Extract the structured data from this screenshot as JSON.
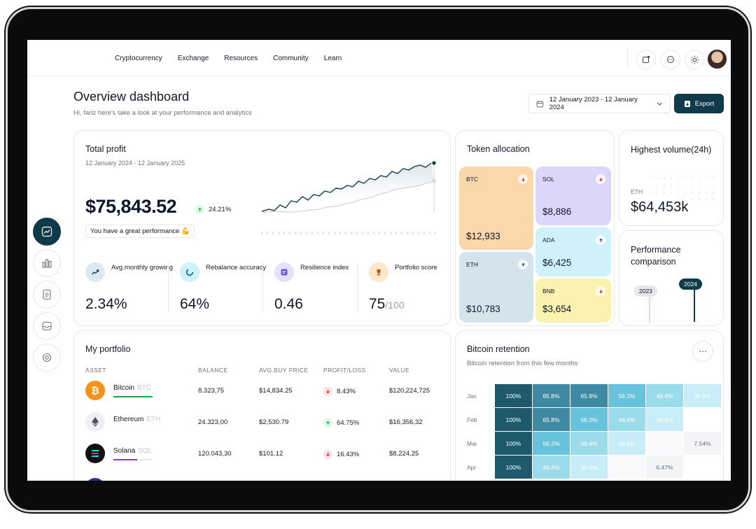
{
  "nav": [
    "Cryptocurrency",
    "Exchange",
    "Resources",
    "Community",
    "Learn"
  ],
  "header": {
    "title": "Overview dashboard",
    "subtitle": "Hi, fariz here's take a look at your performance and analytics",
    "date_range": "12 January 2023 - 12 January 2024",
    "export_label": "Export"
  },
  "total_profit": {
    "title": "Total profit",
    "date": "12 January 2024 - 12 January 2025",
    "amount": "$75,843.52",
    "change": "24.21%",
    "performance_note": "You have a great performance 💪",
    "stats": [
      {
        "label": "Avg.monthly growing",
        "value": "2.34%"
      },
      {
        "label": "Rebalance accuracy",
        "value": "64%"
      },
      {
        "label": "Resilience index",
        "value": "0.46"
      },
      {
        "label": "Portfolio score",
        "value": "75",
        "suffix": "/100"
      }
    ]
  },
  "token_allocation": {
    "title": "Token allocation",
    "tokens": [
      {
        "symbol": "BTC",
        "amount": "$12,933",
        "trend": "down"
      },
      {
        "symbol": "SOL",
        "amount": "$8,886",
        "trend": "down"
      },
      {
        "symbol": "ADA",
        "amount": "$6,425",
        "trend": "up"
      },
      {
        "symbol": "ETH",
        "amount": "$10,783",
        "trend": "up"
      },
      {
        "symbol": "BNB",
        "amount": "$3,654",
        "trend": "down"
      }
    ]
  },
  "highest_volume": {
    "title": "Highest volume(24h)",
    "symbol": "ETH",
    "amount": "$64,453k"
  },
  "performance_comparison": {
    "title": "Performance comparison",
    "years": [
      "2023",
      "2024"
    ]
  },
  "portfolio": {
    "title": "My portfolio",
    "columns": [
      "ASSET",
      "BALANCE",
      "AVG.BUY PRICE",
      "PROFIT/LOSS",
      "VALUE"
    ],
    "rows": [
      {
        "name": "Bitcoin",
        "symbol": "BTC",
        "balance": "8.323,75",
        "avg_price": "$14,834.25",
        "pl": "8.43%",
        "pl_trend": "down",
        "value": "$120,224,725"
      },
      {
        "name": "Ethereum",
        "symbol": "ETH",
        "balance": "24.323,00",
        "avg_price": "$2,530.79",
        "pl": "64.75%",
        "pl_trend": "up",
        "value": "$16,356,32"
      },
      {
        "name": "Solana",
        "symbol": "SOL",
        "balance": "120.043,30",
        "avg_price": "$101.12",
        "pl": "16.43%",
        "pl_trend": "down",
        "value": "$8,224,25"
      }
    ]
  },
  "retention": {
    "title": "Bitcoin retention",
    "subtitle": "Bitcoin retention from this few months",
    "months": [
      "Jan",
      "Feb",
      "Mar",
      "Apr"
    ],
    "rows": [
      [
        "100%",
        "65.8%",
        "65.8%",
        "56.2%",
        "48.4%",
        "34.6%"
      ],
      [
        "100%",
        "65.8%",
        "56.2%",
        "48.4%",
        "34.6%"
      ],
      [
        "100%",
        "56.2%",
        "48.4%",
        "34.6%",
        "",
        "7.54%"
      ],
      [
        "100%",
        "48.4%",
        "34.6%",
        "",
        "6.47%"
      ]
    ]
  },
  "colors": {
    "primary": "#0f3a4a",
    "btc_tile": "#fcd7ac",
    "sol_tile": "#ddd6fb",
    "ada_tile": "#cff1fa",
    "eth_tile": "#d3e4ec",
    "bnb_tile": "#fbf2b0"
  }
}
